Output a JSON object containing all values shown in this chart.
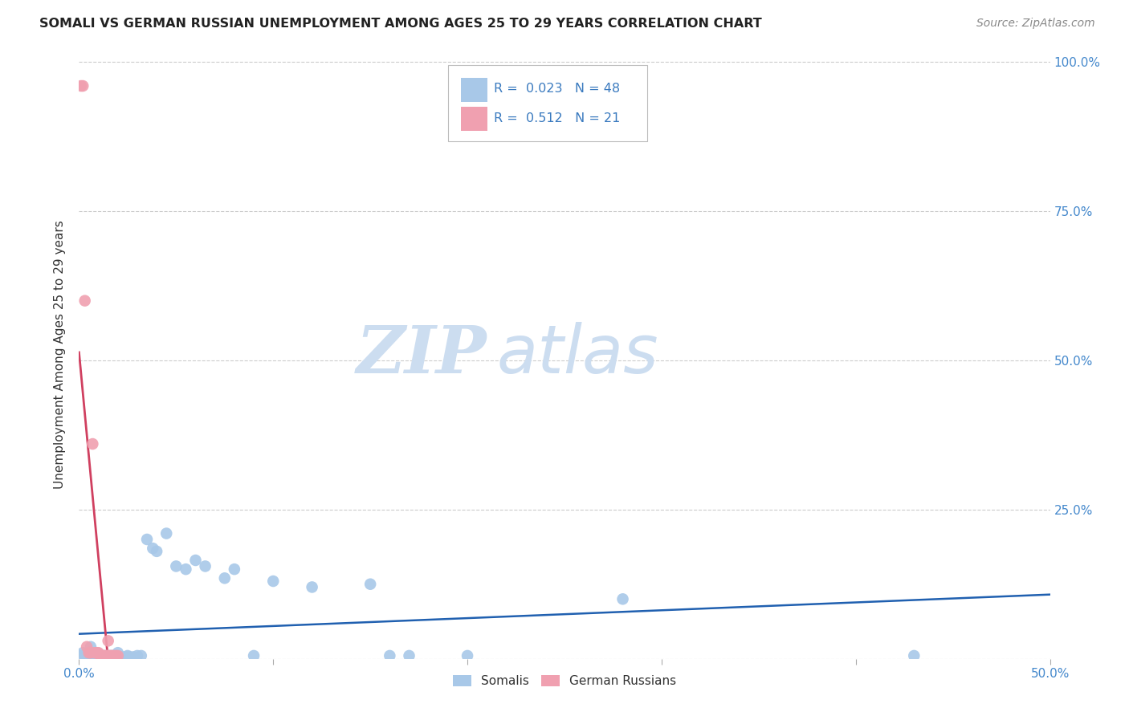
{
  "title": "SOMALI VS GERMAN RUSSIAN UNEMPLOYMENT AMONG AGES 25 TO 29 YEARS CORRELATION CHART",
  "source": "Source: ZipAtlas.com",
  "ylabel": "Unemployment Among Ages 25 to 29 years",
  "xlim": [
    0.0,
    0.5
  ],
  "ylim": [
    0.0,
    1.02
  ],
  "somali_R": 0.023,
  "somali_N": 48,
  "german_russian_R": 0.512,
  "german_russian_N": 21,
  "somali_color": "#a8c8e8",
  "somali_line_color": "#2060b0",
  "german_russian_color": "#f0a0b0",
  "german_russian_line_color": "#d04060",
  "watermark_zip": "ZIP",
  "watermark_atlas": "atlas",
  "watermark_color": "#ccddf0",
  "somali_x": [
    0.001,
    0.002,
    0.003,
    0.004,
    0.005,
    0.006,
    0.006,
    0.007,
    0.008,
    0.009,
    0.01,
    0.01,
    0.011,
    0.012,
    0.013,
    0.014,
    0.015,
    0.016,
    0.017,
    0.018,
    0.019,
    0.02,
    0.022,
    0.024,
    0.025,
    0.026,
    0.028,
    0.03,
    0.032,
    0.035,
    0.038,
    0.04,
    0.045,
    0.05,
    0.055,
    0.06,
    0.065,
    0.075,
    0.08,
    0.09,
    0.1,
    0.12,
    0.15,
    0.16,
    0.17,
    0.2,
    0.28,
    0.43
  ],
  "somali_y": [
    0.005,
    0.01,
    0.005,
    0.005,
    0.005,
    0.005,
    0.02,
    0.005,
    0.005,
    0.01,
    0.005,
    0.003,
    0.005,
    0.005,
    0.005,
    0.005,
    0.003,
    0.005,
    0.005,
    0.005,
    0.005,
    0.01,
    0.003,
    0.003,
    0.005,
    0.003,
    0.003,
    0.005,
    0.005,
    0.2,
    0.185,
    0.18,
    0.21,
    0.155,
    0.15,
    0.165,
    0.155,
    0.135,
    0.15,
    0.005,
    0.13,
    0.12,
    0.125,
    0.005,
    0.005,
    0.005,
    0.1,
    0.005
  ],
  "german_russian_x": [
    0.001,
    0.002,
    0.003,
    0.004,
    0.005,
    0.006,
    0.007,
    0.008,
    0.009,
    0.01,
    0.011,
    0.012,
    0.013,
    0.014,
    0.015,
    0.015,
    0.016,
    0.017,
    0.018,
    0.019,
    0.02
  ],
  "german_russian_y": [
    0.96,
    0.96,
    0.6,
    0.02,
    0.01,
    0.01,
    0.36,
    0.01,
    0.01,
    0.01,
    0.005,
    0.005,
    0.005,
    0.005,
    0.005,
    0.03,
    0.005,
    0.005,
    0.005,
    0.005,
    0.005
  ]
}
